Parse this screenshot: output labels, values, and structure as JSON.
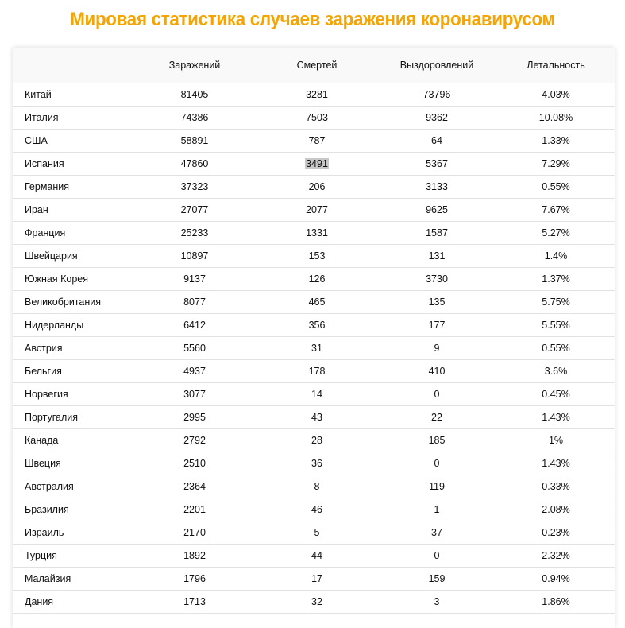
{
  "title": "Мировая статистика случаев заражения коронавирусом",
  "table": {
    "headers": [
      "",
      "Заражений",
      "Смертей",
      "Выздоровлений",
      "Летальность"
    ],
    "rows": [
      [
        "Китай",
        "81405",
        "3281",
        "73796",
        "4.03%"
      ],
      [
        "Италия",
        "74386",
        "7503",
        "9362",
        "10.08%"
      ],
      [
        "США",
        "58891",
        "787",
        "64",
        "1.33%"
      ],
      [
        "Испания",
        "47860",
        "3491",
        "5367",
        "7.29%"
      ],
      [
        "Германия",
        "37323",
        "206",
        "3133",
        "0.55%"
      ],
      [
        "Иран",
        "27077",
        "2077",
        "9625",
        "7.67%"
      ],
      [
        "Франция",
        "25233",
        "1331",
        "1587",
        "5.27%"
      ],
      [
        "Швейцария",
        "10897",
        "153",
        "131",
        "1.4%"
      ],
      [
        "Южная Корея",
        "9137",
        "126",
        "3730",
        "1.37%"
      ],
      [
        "Великобритания",
        "8077",
        "465",
        "135",
        "5.75%"
      ],
      [
        "Нидерланды",
        "6412",
        "356",
        "177",
        "5.55%"
      ],
      [
        "Австрия",
        "5560",
        "31",
        "9",
        "0.55%"
      ],
      [
        "Бельгия",
        "4937",
        "178",
        "410",
        "3.6%"
      ],
      [
        "Норвегия",
        "3077",
        "14",
        "0",
        "0.45%"
      ],
      [
        "Португалия",
        "2995",
        "43",
        "22",
        "1.43%"
      ],
      [
        "Канада",
        "2792",
        "28",
        "185",
        "1%"
      ],
      [
        "Швеция",
        "2510",
        "36",
        "0",
        "1.43%"
      ],
      [
        "Австралия",
        "2364",
        "8",
        "119",
        "0.33%"
      ],
      [
        "Бразилия",
        "2201",
        "46",
        "1",
        "2.08%"
      ],
      [
        "Израиль",
        "2170",
        "5",
        "37",
        "0.23%"
      ],
      [
        "Турция",
        "1892",
        "44",
        "0",
        "2.32%"
      ],
      [
        "Малайзия",
        "1796",
        "17",
        "159",
        "0.94%"
      ],
      [
        "Дания",
        "1713",
        "32",
        "3",
        "1.86%"
      ]
    ],
    "highlighted_cell": {
      "row": 3,
      "col": 2
    }
  },
  "colors": {
    "title": "#f5a400",
    "header_bg": "#f9f9f9",
    "highlight": "#c8c8c8"
  }
}
